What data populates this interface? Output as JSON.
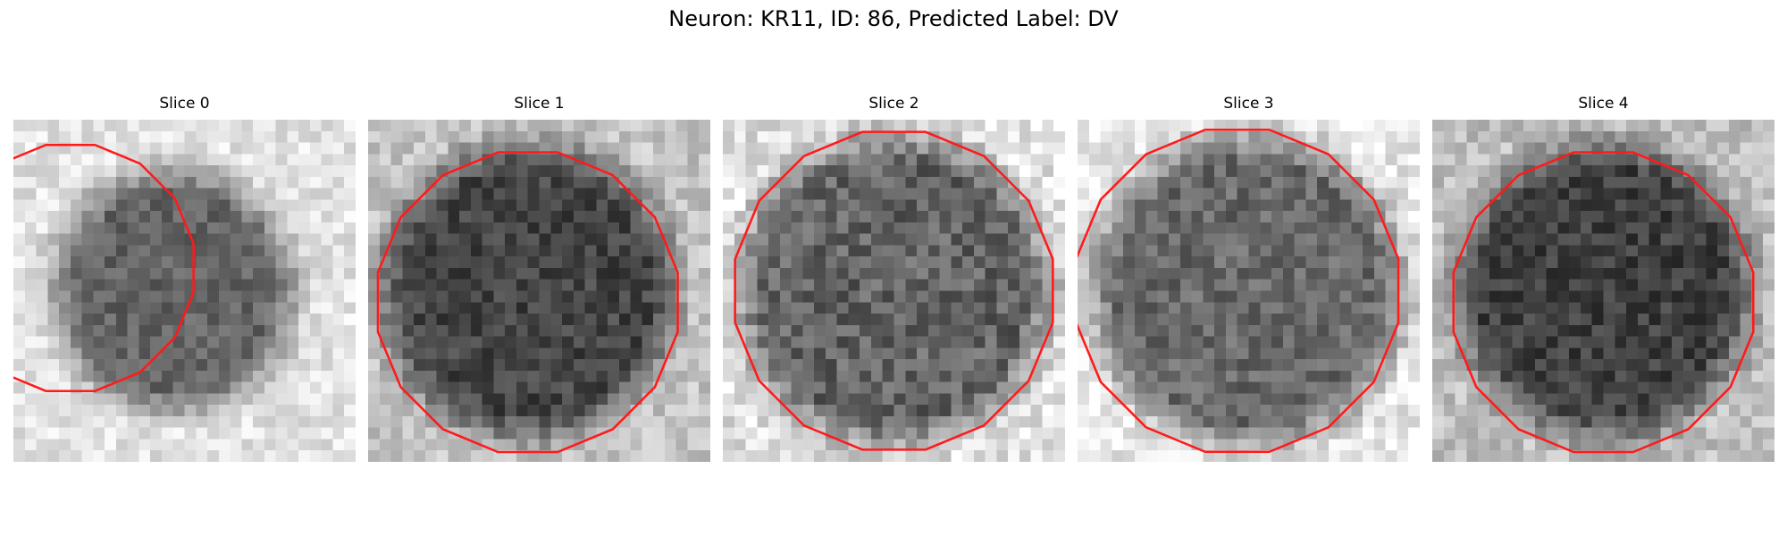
{
  "figure": {
    "title": "Neuron: KR11, ID: 86, Predicted Label: DV",
    "contour_color": "#ff1a1a",
    "colormap": "gray"
  },
  "panels": [
    {
      "title": "Slice 0",
      "contour_rings": [
        [
          5,
          13,
          11.0
        ]
      ]
    },
    {
      "title": "Slice 1",
      "contour_rings": [
        [
          14,
          16,
          13.4
        ]
      ]
    },
    {
      "title": "Slice 2",
      "contour_rings": [
        [
          15,
          15,
          14.2
        ]
      ]
    },
    {
      "title": "Slice 3",
      "contour_rings": [
        [
          14,
          15,
          14.4
        ]
      ]
    },
    {
      "title": "Slice 4",
      "contour_rings": [
        [
          15,
          16,
          13.4
        ]
      ]
    }
  ]
}
